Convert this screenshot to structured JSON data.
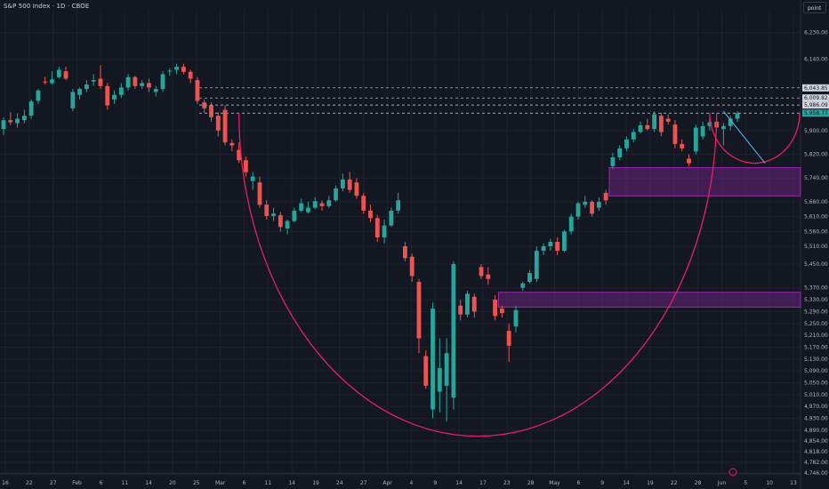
{
  "header": {
    "title": "S&P 500 Index · 1D · CBOE",
    "unit_button": "point"
  },
  "chart_data": {
    "type": "candlestick",
    "ylim": [
      4746,
      6310
    ],
    "y_ticks": [
      {
        "v": 6230,
        "label": "6,230.00"
      },
      {
        "v": 6140,
        "label": "6,140.00"
      },
      {
        "v": 5900,
        "label": "5,900.00"
      },
      {
        "v": 5820,
        "label": "5,820.00"
      },
      {
        "v": 5740,
        "label": "5,740.00"
      },
      {
        "v": 5660,
        "label": "5,660.00"
      },
      {
        "v": 5610,
        "label": "5,610.00"
      },
      {
        "v": 5560,
        "label": "5,560.00"
      },
      {
        "v": 5510,
        "label": "5,510.00"
      },
      {
        "v": 5450,
        "label": "5,450.00"
      },
      {
        "v": 5370,
        "label": "5,370.00"
      },
      {
        "v": 5330,
        "label": "5,330.00"
      },
      {
        "v": 5290,
        "label": "5,290.00"
      },
      {
        "v": 5250,
        "label": "5,250.00"
      },
      {
        "v": 5210,
        "label": "5,210.00"
      },
      {
        "v": 5170,
        "label": "5,170.00"
      },
      {
        "v": 5130,
        "label": "5,130.00"
      },
      {
        "v": 5090,
        "label": "5,090.00"
      },
      {
        "v": 5050,
        "label": "5,050.00"
      },
      {
        "v": 5010,
        "label": "5,010.00"
      },
      {
        "v": 4970,
        "label": "4,970.00"
      },
      {
        "v": 4930,
        "label": "4,930.00"
      },
      {
        "v": 4890,
        "label": "4,890.00"
      },
      {
        "v": 4854,
        "label": "4,854.00"
      },
      {
        "v": 4818,
        "label": "4,818.00"
      },
      {
        "v": 4782,
        "label": "4,782.00"
      },
      {
        "v": 4746,
        "label": "4,746.00"
      }
    ],
    "price_labels": [
      {
        "v": 6043.85,
        "label": "6,043.85",
        "color": "#d1d4dc"
      },
      {
        "v": 6009.82,
        "label": "6,009.82",
        "color": "#d1d4dc"
      },
      {
        "v": 5986.09,
        "label": "5,986.09",
        "color": "#d1d4dc"
      },
      {
        "v": 5958.77,
        "label": "5,958.77",
        "color": "#26a69a"
      }
    ],
    "x_labels": [
      "16",
      "22",
      "27",
      "Feb",
      "6",
      "11",
      "14",
      "20",
      "25",
      "Mar",
      "6",
      "11",
      "14",
      "19",
      "24",
      "27",
      "Apr",
      "4",
      "9",
      "14",
      "17",
      "23",
      "28",
      "May",
      "6",
      "9",
      "14",
      "19",
      "22",
      "28",
      "Jun",
      "5",
      "10",
      "13"
    ],
    "candles": [
      {
        "o": 5905,
        "h": 5945,
        "l": 5885,
        "c": 5935
      },
      {
        "o": 5935,
        "h": 5962,
        "l": 5918,
        "c": 5928
      },
      {
        "o": 5925,
        "h": 5958,
        "l": 5910,
        "c": 5940
      },
      {
        "o": 5935,
        "h": 5970,
        "l": 5925,
        "c": 5950
      },
      {
        "o": 5950,
        "h": 6005,
        "l": 5940,
        "c": 5998
      },
      {
        "o": 6000,
        "h": 6040,
        "l": 5990,
        "c": 6035
      },
      {
        "o": 6065,
        "h": 6082,
        "l": 6055,
        "c": 6062
      },
      {
        "o": 6060,
        "h": 6100,
        "l": 6055,
        "c": 6072
      },
      {
        "o": 6080,
        "h": 6115,
        "l": 6075,
        "c": 6105
      },
      {
        "o": 6100,
        "h": 6115,
        "l": 6070,
        "c": 6075
      },
      {
        "o": 5975,
        "h": 6040,
        "l": 5965,
        "c": 6030
      },
      {
        "o": 6020,
        "h": 6045,
        "l": 6005,
        "c": 6040
      },
      {
        "o": 6040,
        "h": 6070,
        "l": 6030,
        "c": 6055
      },
      {
        "o": 6065,
        "h": 6090,
        "l": 6050,
        "c": 6070
      },
      {
        "o": 6075,
        "h": 6120,
        "l": 6040,
        "c": 6050
      },
      {
        "o": 6050,
        "h": 6060,
        "l": 5970,
        "c": 5985
      },
      {
        "o": 6005,
        "h": 6035,
        "l": 5990,
        "c": 6020
      },
      {
        "o": 6020,
        "h": 6060,
        "l": 6010,
        "c": 6045
      },
      {
        "o": 6045,
        "h": 6090,
        "l": 6035,
        "c": 6080
      },
      {
        "o": 6080,
        "h": 6085,
        "l": 6040,
        "c": 6050
      },
      {
        "o": 6050,
        "h": 6070,
        "l": 6040,
        "c": 6060
      },
      {
        "o": 6060,
        "h": 6075,
        "l": 6030,
        "c": 6045
      },
      {
        "o": 6030,
        "h": 6050,
        "l": 6015,
        "c": 6040
      },
      {
        "o": 6040,
        "h": 6100,
        "l": 6030,
        "c": 6090
      },
      {
        "o": 6100,
        "h": 6110,
        "l": 6085,
        "c": 6102
      },
      {
        "o": 6105,
        "h": 6125,
        "l": 6090,
        "c": 6115
      },
      {
        "o": 6115,
        "h": 6125,
        "l": 6090,
        "c": 6098
      },
      {
        "o": 6098,
        "h": 6105,
        "l": 6060,
        "c": 6075
      },
      {
        "o": 6070,
        "h": 6080,
        "l": 5990,
        "c": 6000
      },
      {
        "o": 5995,
        "h": 6005,
        "l": 5960,
        "c": 5975
      },
      {
        "o": 5985,
        "h": 5995,
        "l": 5930,
        "c": 5945
      },
      {
        "o": 5950,
        "h": 5962,
        "l": 5880,
        "c": 5900
      },
      {
        "o": 5970,
        "h": 5985,
        "l": 5850,
        "c": 5860
      },
      {
        "o": 5858,
        "h": 5870,
        "l": 5830,
        "c": 5850
      },
      {
        "o": 5835,
        "h": 5860,
        "l": 5790,
        "c": 5800
      },
      {
        "o": 5800,
        "h": 5812,
        "l": 5745,
        "c": 5760
      },
      {
        "o": 5730,
        "h": 5760,
        "l": 5700,
        "c": 5745
      },
      {
        "o": 5725,
        "h": 5745,
        "l": 5640,
        "c": 5650
      },
      {
        "o": 5650,
        "h": 5665,
        "l": 5600,
        "c": 5612
      },
      {
        "o": 5612,
        "h": 5640,
        "l": 5595,
        "c": 5620
      },
      {
        "o": 5615,
        "h": 5625,
        "l": 5560,
        "c": 5575
      },
      {
        "o": 5570,
        "h": 5600,
        "l": 5550,
        "c": 5595
      },
      {
        "o": 5595,
        "h": 5640,
        "l": 5590,
        "c": 5630
      },
      {
        "o": 5630,
        "h": 5670,
        "l": 5625,
        "c": 5655
      },
      {
        "o": 5625,
        "h": 5660,
        "l": 5620,
        "c": 5640
      },
      {
        "o": 5640,
        "h": 5675,
        "l": 5635,
        "c": 5662
      },
      {
        "o": 5655,
        "h": 5665,
        "l": 5630,
        "c": 5645
      },
      {
        "o": 5645,
        "h": 5680,
        "l": 5640,
        "c": 5665
      },
      {
        "o": 5665,
        "h": 5715,
        "l": 5660,
        "c": 5705
      },
      {
        "o": 5705,
        "h": 5755,
        "l": 5695,
        "c": 5735
      },
      {
        "o": 5735,
        "h": 5760,
        "l": 5690,
        "c": 5700
      },
      {
        "o": 5725,
        "h": 5740,
        "l": 5670,
        "c": 5680
      },
      {
        "o": 5680,
        "h": 5690,
        "l": 5620,
        "c": 5630
      },
      {
        "o": 5630,
        "h": 5650,
        "l": 5590,
        "c": 5605
      },
      {
        "o": 5605,
        "h": 5615,
        "l": 5525,
        "c": 5540
      },
      {
        "o": 5540,
        "h": 5600,
        "l": 5520,
        "c": 5580
      },
      {
        "o": 5580,
        "h": 5640,
        "l": 5575,
        "c": 5630
      },
      {
        "o": 5630,
        "h": 5690,
        "l": 5620,
        "c": 5665
      },
      {
        "o": 5510,
        "h": 5525,
        "l": 5460,
        "c": 5470
      },
      {
        "o": 5475,
        "h": 5485,
        "l": 5390,
        "c": 5410
      },
      {
        "o": 5390,
        "h": 5400,
        "l": 5150,
        "c": 5200
      },
      {
        "o": 5140,
        "h": 5160,
        "l": 5030,
        "c": 5040
      },
      {
        "o": 4960,
        "h": 5320,
        "l": 4930,
        "c": 5300
      },
      {
        "o": 5020,
        "h": 5200,
        "l": 4950,
        "c": 5100
      },
      {
        "o": 5040,
        "h": 5200,
        "l": 4920,
        "c": 5150
      },
      {
        "o": 5000,
        "h": 5460,
        "l": 4960,
        "c": 5450
      },
      {
        "o": 5310,
        "h": 5330,
        "l": 5260,
        "c": 5280
      },
      {
        "o": 5280,
        "h": 5360,
        "l": 5270,
        "c": 5350
      },
      {
        "o": 5340,
        "h": 5350,
        "l": 5270,
        "c": 5290
      },
      {
        "o": 5440,
        "h": 5450,
        "l": 5400,
        "c": 5410
      },
      {
        "o": 5415,
        "h": 5440,
        "l": 5380,
        "c": 5400
      },
      {
        "o": 5330,
        "h": 5345,
        "l": 5260,
        "c": 5275
      },
      {
        "o": 5300,
        "h": 5310,
        "l": 5270,
        "c": 5285
      },
      {
        "o": 5225,
        "h": 5250,
        "l": 5120,
        "c": 5175
      },
      {
        "o": 5240,
        "h": 5310,
        "l": 5220,
        "c": 5295
      },
      {
        "o": 5370,
        "h": 5390,
        "l": 5360,
        "c": 5385
      },
      {
        "o": 5390,
        "h": 5430,
        "l": 5385,
        "c": 5420
      },
      {
        "o": 5400,
        "h": 5510,
        "l": 5390,
        "c": 5495
      },
      {
        "o": 5495,
        "h": 5520,
        "l": 5480,
        "c": 5510
      },
      {
        "o": 5510,
        "h": 5535,
        "l": 5495,
        "c": 5525
      },
      {
        "o": 5525,
        "h": 5540,
        "l": 5480,
        "c": 5495
      },
      {
        "o": 5495,
        "h": 5565,
        "l": 5490,
        "c": 5560
      },
      {
        "o": 5560,
        "h": 5620,
        "l": 5550,
        "c": 5610
      },
      {
        "o": 5610,
        "h": 5660,
        "l": 5600,
        "c": 5655
      },
      {
        "o": 5650,
        "h": 5680,
        "l": 5640,
        "c": 5660
      },
      {
        "o": 5660,
        "h": 5665,
        "l": 5610,
        "c": 5620
      },
      {
        "o": 5640,
        "h": 5675,
        "l": 5630,
        "c": 5660
      },
      {
        "o": 5690,
        "h": 5700,
        "l": 5650,
        "c": 5665
      },
      {
        "o": 5780,
        "h": 5825,
        "l": 5770,
        "c": 5810
      },
      {
        "o": 5810,
        "h": 5850,
        "l": 5800,
        "c": 5840
      },
      {
        "o": 5840,
        "h": 5880,
        "l": 5830,
        "c": 5870
      },
      {
        "o": 5870,
        "h": 5905,
        "l": 5860,
        "c": 5895
      },
      {
        "o": 5895,
        "h": 5930,
        "l": 5890,
        "c": 5918
      },
      {
        "o": 5918,
        "h": 5940,
        "l": 5900,
        "c": 5905
      },
      {
        "o": 5905,
        "h": 5965,
        "l": 5895,
        "c": 5955
      },
      {
        "o": 5950,
        "h": 5960,
        "l": 5880,
        "c": 5895
      },
      {
        "o": 5940,
        "h": 5955,
        "l": 5920,
        "c": 5930
      },
      {
        "o": 5920,
        "h": 5935,
        "l": 5840,
        "c": 5855
      },
      {
        "o": 5855,
        "h": 5870,
        "l": 5830,
        "c": 5840
      },
      {
        "o": 5805,
        "h": 5820,
        "l": 5780,
        "c": 5790
      },
      {
        "o": 5830,
        "h": 5920,
        "l": 5820,
        "c": 5910
      },
      {
        "o": 5880,
        "h": 5930,
        "l": 5870,
        "c": 5915
      },
      {
        "o": 5915,
        "h": 5940,
        "l": 5900,
        "c": 5928
      },
      {
        "o": 5930,
        "h": 5945,
        "l": 5900,
        "c": 5910
      },
      {
        "o": 5905,
        "h": 5925,
        "l": 5850,
        "c": 5915
      },
      {
        "o": 5915,
        "h": 5950,
        "l": 5900,
        "c": 5940
      },
      {
        "o": 5940,
        "h": 5965,
        "l": 5930,
        "c": 5958
      }
    ],
    "levels": [
      6043.85,
      6009.82,
      5986.09,
      5958.77
    ],
    "zones": [
      {
        "y_top": 5775,
        "y_bottom": 5680,
        "from_candle": 88
      },
      {
        "y_top": 5355,
        "y_bottom": 5305,
        "from_candle": 72
      }
    ],
    "colors": {
      "up": "#26a69a",
      "down": "#ef5350",
      "background": "#131722",
      "grid": "#1e222d",
      "arc": "#e91e63",
      "zone_fill": "#9c27b0",
      "trendline": "#4fc3f7"
    }
  }
}
